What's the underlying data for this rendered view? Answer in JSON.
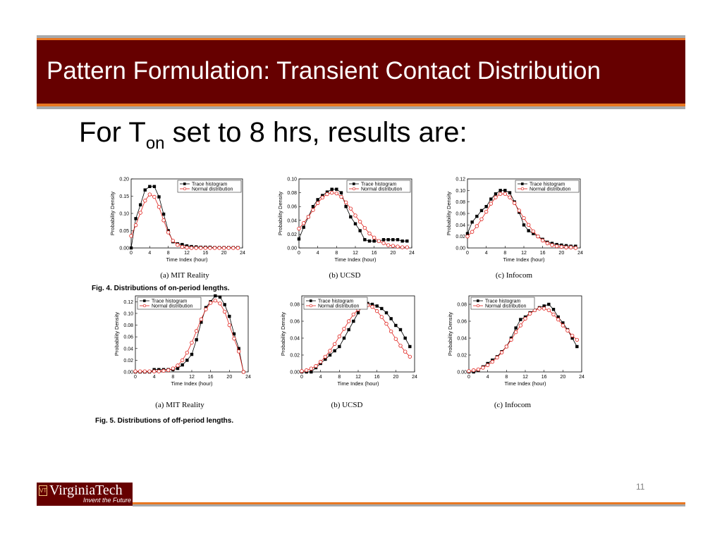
{
  "slide": {
    "title": "Pattern Formulation: Transient Contact Distribution",
    "headline_pre": "For T",
    "headline_sub": "on",
    "headline_post": " set to 8 hrs, results are:",
    "page_number": "11",
    "logo_name": "VirginiaTech",
    "logo_tagline": "Invent the Future",
    "logo_shield_glyph": "VT"
  },
  "figure_captions": {
    "fig4": "Fig. 4. Distributions of on-period lengths.",
    "fig5": "Fig. 5. Distributions of off-period lengths."
  },
  "colors": {
    "title_band": "#660000",
    "accent_orange": "#e87722",
    "rule_gray": "#a7a9ac",
    "trace_series": "#000000",
    "normal_series": "#e0201b"
  },
  "chart_data": [
    {
      "type": "line",
      "caption": "(a) MIT Reality",
      "xlabel": "Time Index (hour)",
      "ylabel": "Probability Density",
      "xlim": [
        0,
        24
      ],
      "ylim": [
        0,
        0.2
      ],
      "xticks": [
        0,
        4,
        8,
        12,
        16,
        20,
        24
      ],
      "yticks": [
        "0.00",
        "0.05",
        "0.10",
        "0.15",
        "0.20"
      ],
      "legend": "top-right",
      "series": [
        {
          "name": "Trace histogram",
          "marker": "square",
          "color": "#000000",
          "x": [
            0,
            1,
            2,
            3,
            4,
            5,
            6,
            7,
            8,
            9,
            10,
            11,
            12,
            13,
            14,
            15,
            16,
            17,
            18,
            19,
            20,
            21,
            22,
            23
          ],
          "y": [
            0.0,
            0.085,
            0.125,
            0.168,
            0.178,
            0.178,
            0.148,
            0.098,
            0.05,
            0.018,
            0.012,
            0.01,
            0.006,
            0.004,
            0.003,
            0.002,
            0.002,
            0.002,
            0.001,
            0.001,
            0.001,
            0.001,
            0.001,
            0.001
          ]
        },
        {
          "name": "Normal distribution",
          "marker": "circle",
          "color": "#e0201b",
          "x": [
            0,
            1,
            2,
            3,
            4,
            5,
            6,
            7,
            8,
            9,
            10,
            11,
            12,
            13,
            14,
            15,
            16,
            17,
            18,
            19,
            20,
            21,
            22,
            23
          ],
          "y": [
            0.035,
            0.066,
            0.102,
            0.137,
            0.155,
            0.148,
            0.119,
            0.08,
            0.045,
            0.021,
            0.009,
            0.003,
            0.001,
            0.0,
            0.0,
            0.0,
            0.0,
            0.0,
            0.0,
            0.0,
            0.0,
            0.0,
            0.0,
            0.0
          ]
        }
      ]
    },
    {
      "type": "line",
      "caption": "(b) UCSD",
      "xlabel": "Time Index (hour)",
      "ylabel": "Probability Density",
      "xlim": [
        0,
        24
      ],
      "ylim": [
        0,
        0.1
      ],
      "xticks": [
        0,
        4,
        8,
        12,
        16,
        20,
        24
      ],
      "yticks": [
        "0.00",
        "0.02",
        "0.04",
        "0.06",
        "0.08",
        "0.10"
      ],
      "legend": "top-right",
      "series": [
        {
          "name": "Trace histogram",
          "marker": "square",
          "color": "#000000",
          "x": [
            0,
            1,
            2,
            3,
            4,
            5,
            6,
            7,
            8,
            9,
            10,
            11,
            12,
            13,
            14,
            15,
            16,
            17,
            18,
            19,
            20,
            21,
            22,
            23
          ],
          "y": [
            0.013,
            0.03,
            0.045,
            0.06,
            0.07,
            0.076,
            0.081,
            0.085,
            0.085,
            0.08,
            0.06,
            0.045,
            0.035,
            0.025,
            0.012,
            0.01,
            0.01,
            0.01,
            0.012,
            0.012,
            0.012,
            0.012,
            0.01,
            0.01
          ]
        },
        {
          "name": "Normal distribution",
          "marker": "circle",
          "color": "#e0201b",
          "x": [
            0,
            1,
            2,
            3,
            4,
            5,
            6,
            7,
            8,
            9,
            10,
            11,
            12,
            13,
            14,
            15,
            16,
            17,
            18,
            19,
            20,
            21,
            22,
            23
          ],
          "y": [
            0.028,
            0.036,
            0.045,
            0.055,
            0.065,
            0.073,
            0.078,
            0.08,
            0.079,
            0.074,
            0.066,
            0.057,
            0.047,
            0.038,
            0.029,
            0.021,
            0.015,
            0.01,
            0.007,
            0.004,
            0.003,
            0.002,
            0.001,
            0.001
          ]
        }
      ]
    },
    {
      "type": "line",
      "caption": "(c) Infocom",
      "xlabel": "Time Index (hour)",
      "ylabel": "Probability Density",
      "xlim": [
        0,
        24
      ],
      "ylim": [
        0,
        0.12
      ],
      "xticks": [
        0,
        4,
        8,
        12,
        16,
        20,
        24
      ],
      "yticks": [
        "0.00",
        "0.02",
        "0.04",
        "0.06",
        "0.08",
        "0.10",
        "0.12"
      ],
      "legend": "top-right",
      "series": [
        {
          "name": "Trace histogram",
          "marker": "square",
          "color": "#000000",
          "x": [
            0,
            1,
            2,
            3,
            4,
            5,
            6,
            7,
            8,
            9,
            10,
            11,
            12,
            13,
            14,
            15,
            16,
            17,
            18,
            19,
            20,
            21,
            22,
            23
          ],
          "y": [
            0.025,
            0.045,
            0.055,
            0.065,
            0.072,
            0.085,
            0.094,
            0.1,
            0.1,
            0.096,
            0.08,
            0.062,
            0.04,
            0.03,
            0.025,
            0.02,
            0.015,
            0.01,
            0.008,
            0.006,
            0.005,
            0.004,
            0.003,
            0.003
          ]
        },
        {
          "name": "Normal distribution",
          "marker": "circle",
          "color": "#e0201b",
          "x": [
            0,
            1,
            2,
            3,
            4,
            5,
            6,
            7,
            8,
            9,
            10,
            11,
            12,
            13,
            14,
            15,
            16,
            17,
            18,
            19,
            20,
            21,
            22,
            23
          ],
          "y": [
            0.02,
            0.028,
            0.038,
            0.05,
            0.063,
            0.077,
            0.088,
            0.094,
            0.094,
            0.088,
            0.078,
            0.065,
            0.052,
            0.04,
            0.029,
            0.02,
            0.013,
            0.008,
            0.005,
            0.003,
            0.002,
            0.001,
            0.001,
            0.0
          ]
        }
      ]
    },
    {
      "type": "line",
      "caption": "(a) MIT Reality",
      "xlabel": "Time Index (hour)",
      "ylabel": "Probability Density",
      "xlim": [
        0,
        24
      ],
      "ylim": [
        0,
        0.13
      ],
      "xticks": [
        0,
        4,
        8,
        12,
        16,
        20,
        24
      ],
      "yticks": [
        "0.00",
        "0.02",
        "0.04",
        "0.06",
        "0.08",
        "0.10",
        "0.12"
      ],
      "legend": "top-left",
      "series": [
        {
          "name": "Trace histogram",
          "marker": "square",
          "color": "#000000",
          "x": [
            0,
            1,
            2,
            3,
            4,
            5,
            6,
            7,
            8,
            9,
            10,
            11,
            12,
            13,
            14,
            15,
            16,
            17,
            18,
            19,
            20,
            21,
            22,
            23
          ],
          "y": [
            0.0,
            0.0,
            0.0,
            0.0,
            0.004,
            0.004,
            0.004,
            0.004,
            0.004,
            0.006,
            0.012,
            0.02,
            0.03,
            0.055,
            0.085,
            0.11,
            0.12,
            0.13,
            0.128,
            0.115,
            0.095,
            0.065,
            0.04,
            0.0
          ]
        },
        {
          "name": "Normal distribution",
          "marker": "circle",
          "color": "#e0201b",
          "x": [
            0,
            1,
            2,
            3,
            4,
            5,
            6,
            7,
            8,
            9,
            10,
            11,
            12,
            13,
            14,
            15,
            16,
            17,
            18,
            19,
            20,
            21,
            22,
            23
          ],
          "y": [
            0.001,
            0.001,
            0.001,
            0.001,
            0.001,
            0.001,
            0.002,
            0.003,
            0.006,
            0.011,
            0.02,
            0.033,
            0.05,
            0.07,
            0.09,
            0.107,
            0.118,
            0.122,
            0.117,
            0.103,
            0.08,
            0.057,
            0.035,
            0.0
          ]
        }
      ]
    },
    {
      "type": "line",
      "caption": "(b) UCSD",
      "xlabel": "Time Index (hour)",
      "ylabel": "Probability Density",
      "xlim": [
        0,
        24
      ],
      "ylim": [
        0,
        0.09
      ],
      "xticks": [
        0,
        4,
        8,
        12,
        16,
        20,
        24
      ],
      "yticks": [
        "0.00",
        "0.02",
        "0.04",
        "0.06",
        "0.08"
      ],
      "legend": "top-left",
      "series": [
        {
          "name": "Trace histogram",
          "marker": "square",
          "color": "#000000",
          "x": [
            0,
            1,
            2,
            3,
            4,
            5,
            6,
            7,
            8,
            9,
            10,
            11,
            12,
            13,
            14,
            15,
            16,
            17,
            18,
            19,
            20,
            21,
            22,
            23
          ],
          "y": [
            0.0,
            0.0,
            0.0,
            0.005,
            0.01,
            0.015,
            0.02,
            0.025,
            0.03,
            0.04,
            0.05,
            0.06,
            0.07,
            0.08,
            0.081,
            0.08,
            0.078,
            0.075,
            0.07,
            0.063,
            0.055,
            0.05,
            0.04,
            0.03
          ]
        },
        {
          "name": "Normal distribution",
          "marker": "circle",
          "color": "#e0201b",
          "x": [
            0,
            1,
            2,
            3,
            4,
            5,
            6,
            7,
            8,
            9,
            10,
            11,
            12,
            13,
            14,
            15,
            16,
            17,
            18,
            19,
            20,
            21,
            22,
            23
          ],
          "y": [
            0.001,
            0.002,
            0.004,
            0.007,
            0.012,
            0.018,
            0.025,
            0.033,
            0.042,
            0.051,
            0.06,
            0.068,
            0.074,
            0.078,
            0.079,
            0.077,
            0.072,
            0.065,
            0.057,
            0.048,
            0.039,
            0.031,
            0.024,
            0.018
          ]
        }
      ]
    },
    {
      "type": "line",
      "caption": "(c) Infocom",
      "xlabel": "Time Index (hour)",
      "ylabel": "Probability Density",
      "xlim": [
        0,
        24
      ],
      "ylim": [
        0,
        0.09
      ],
      "xticks": [
        0,
        4,
        8,
        12,
        16,
        20,
        24
      ],
      "yticks": [
        "0.00",
        "0.02",
        "0.04",
        "0.06",
        "0.08"
      ],
      "legend": "top-left",
      "series": [
        {
          "name": "Trace histogram",
          "marker": "square",
          "color": "#000000",
          "x": [
            0,
            1,
            2,
            3,
            4,
            5,
            6,
            7,
            8,
            9,
            10,
            11,
            12,
            13,
            14,
            15,
            16,
            17,
            18,
            19,
            20,
            21,
            22,
            23
          ],
          "y": [
            0.0,
            0.0,
            0.002,
            0.006,
            0.01,
            0.014,
            0.018,
            0.024,
            0.03,
            0.04,
            0.052,
            0.062,
            0.065,
            0.07,
            0.073,
            0.076,
            0.078,
            0.08,
            0.074,
            0.065,
            0.058,
            0.05,
            0.04,
            0.03
          ]
        },
        {
          "name": "Normal distribution",
          "marker": "circle",
          "color": "#e0201b",
          "x": [
            0,
            1,
            2,
            3,
            4,
            5,
            6,
            7,
            8,
            9,
            10,
            11,
            12,
            13,
            14,
            15,
            16,
            17,
            18,
            19,
            20,
            21,
            22,
            23
          ],
          "y": [
            0.001,
            0.002,
            0.003,
            0.005,
            0.008,
            0.012,
            0.017,
            0.023,
            0.03,
            0.038,
            0.047,
            0.055,
            0.063,
            0.069,
            0.073,
            0.075,
            0.075,
            0.073,
            0.068,
            0.062,
            0.055,
            0.049,
            0.043,
            0.038
          ]
        }
      ]
    }
  ]
}
